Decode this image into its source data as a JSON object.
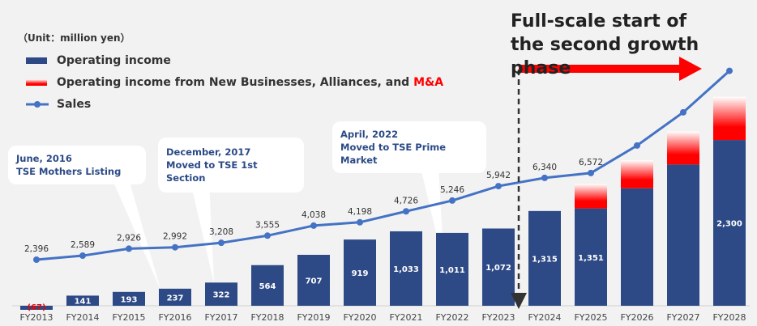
{
  "chart_data": {
    "type": "bar",
    "title": "",
    "unit_label": "（Unit：million yen）",
    "categories": [
      "FY2013",
      "FY2014",
      "FY2015",
      "FY2016",
      "FY2017",
      "FY2018",
      "FY2019",
      "FY2020",
      "FY2021",
      "FY2022",
      "FY2023",
      "FY2024",
      "FY2025",
      "FY2026",
      "FY2027",
      "FY2028"
    ],
    "series": [
      {
        "name": "Operating income",
        "type": "bar",
        "color": "#2e4a86",
        "values": [
          -67,
          141,
          193,
          237,
          322,
          564,
          707,
          919,
          1033,
          1011,
          1072,
          1315,
          1351,
          1630,
          1960,
          2300
        ],
        "labels": [
          "(67)",
          "141",
          "193",
          "237",
          "322",
          "564",
          "707",
          "919",
          "1,033",
          "1,011",
          "1,072",
          "1,315",
          "1,351",
          "",
          "",
          "2,300"
        ]
      },
      {
        "name": "Operating income from New Businesses, Alliances, and M&A",
        "type": "bar-stacked",
        "color": "#ff0000",
        "values": [
          0,
          0,
          0,
          0,
          0,
          0,
          0,
          0,
          0,
          0,
          0,
          0,
          340,
          390,
          460,
          600
        ]
      },
      {
        "name": "Sales",
        "type": "line",
        "color": "#4472c4",
        "values": [
          2396,
          2589,
          2926,
          2992,
          3208,
          3555,
          4038,
          4198,
          4726,
          5246,
          5942,
          6340,
          6572,
          7900,
          9500,
          11500
        ],
        "labels": [
          "2,396",
          "2,589",
          "2,926",
          "2,992",
          "3,208",
          "3,555",
          "4,038",
          "4,198",
          "4,726",
          "5,246",
          "5,942",
          "6,340",
          "6,572",
          "",
          "",
          ""
        ]
      }
    ],
    "legend": {
      "placement": "top-left",
      "items": [
        "Operating income",
        "Operating income from New Businesses, Alliances, and ",
        "Sales"
      ],
      "highlight": "M&A"
    },
    "annotations": {
      "headline": [
        "Full-scale start of",
        "the second growth phase"
      ],
      "notes": [
        [
          "June, 2016",
          "TSE Mothers Listing"
        ],
        [
          "December, 2017",
          "Moved to TSE 1st Section"
        ],
        [
          "April, 2022",
          "Moved to TSE Prime Market"
        ]
      ]
    }
  }
}
